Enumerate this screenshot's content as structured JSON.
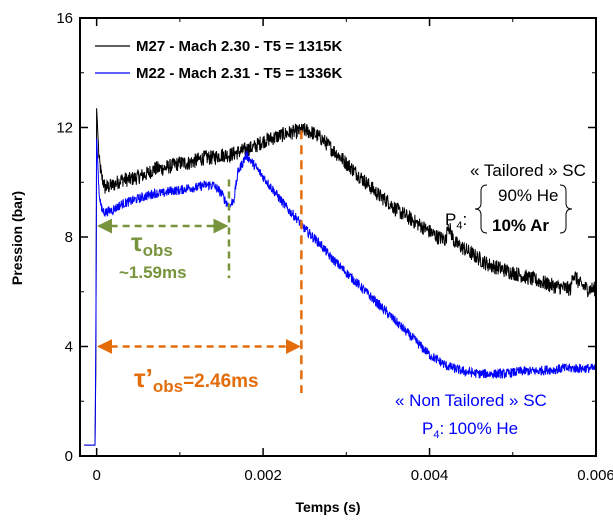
{
  "chart_data": {
    "type": "line",
    "xlabel": "Temps (s)",
    "ylabel": "Pression (bar)",
    "xlim": [
      -0.0002,
      0.006
    ],
    "ylim": [
      0,
      16
    ],
    "xticks": [
      0,
      0.002,
      0.004,
      0.006
    ],
    "xtick_labels": [
      "0",
      "0.002",
      "0.004",
      "0.006"
    ],
    "yticks": [
      0,
      4,
      8,
      12,
      16
    ],
    "ytick_labels": [
      "0",
      "4",
      "8",
      "12",
      "16"
    ],
    "grid": false,
    "legend_position": "top-left",
    "series": [
      {
        "name": "M27 - Mach 2.30 - T5 = 1315K",
        "color": "#000000",
        "x": [
          -0.00015,
          -2e-05,
          -1e-05,
          0.0,
          3e-05,
          6e-05,
          0.0001,
          0.0002,
          0.0003,
          0.0004,
          0.0005,
          0.0006,
          0.0007,
          0.0008,
          0.0009,
          0.001,
          0.0011,
          0.0012,
          0.0013,
          0.0014,
          0.0015,
          0.0016,
          0.0017,
          0.0018,
          0.0019,
          0.002,
          0.0021,
          0.0022,
          0.0023,
          0.0024,
          0.0025,
          0.0026,
          0.0027,
          0.0028,
          0.0029,
          0.003,
          0.0031,
          0.0032,
          0.0033,
          0.0034,
          0.0035,
          0.0036,
          0.0037,
          0.0038,
          0.0039,
          0.004,
          0.0041,
          0.0042,
          0.00422,
          0.0043,
          0.0044,
          0.0045,
          0.0046,
          0.0047,
          0.0048,
          0.0049,
          0.005,
          0.0051,
          0.0052,
          0.0053,
          0.0054,
          0.0055,
          0.0056,
          0.0057,
          0.00572,
          0.0058,
          0.0059,
          0.006
        ],
        "values": [
          0.4,
          0.4,
          3.0,
          12.7,
          10.8,
          10.2,
          9.8,
          9.9,
          10.1,
          10.1,
          10.2,
          10.3,
          10.5,
          10.5,
          10.6,
          10.7,
          10.7,
          10.8,
          10.9,
          10.9,
          11.0,
          11.0,
          11.1,
          11.2,
          11.3,
          11.5,
          11.6,
          11.7,
          11.8,
          11.85,
          11.9,
          11.8,
          11.6,
          11.3,
          11.0,
          10.7,
          10.4,
          10.1,
          9.8,
          9.5,
          9.3,
          9.0,
          8.8,
          8.6,
          8.4,
          8.2,
          8.0,
          7.9,
          8.5,
          7.8,
          7.6,
          7.4,
          7.2,
          7.0,
          6.9,
          6.8,
          6.7,
          6.6,
          6.5,
          6.4,
          6.3,
          6.2,
          6.15,
          6.1,
          6.7,
          6.3,
          6.1,
          6.1
        ]
      },
      {
        "name": "M22 - Mach 2.31 - T5 = 1336K",
        "color": "#0000ff",
        "x": [
          -0.00015,
          -2e-05,
          -1e-05,
          0.0,
          3e-05,
          6e-05,
          0.0001,
          0.0002,
          0.0003,
          0.0004,
          0.0005,
          0.0006,
          0.0007,
          0.0008,
          0.0009,
          0.001,
          0.0011,
          0.0012,
          0.0013,
          0.0014,
          0.0015,
          0.00155,
          0.0016,
          0.00165,
          0.0017,
          0.0018,
          0.0019,
          0.002,
          0.0021,
          0.0022,
          0.0023,
          0.0024,
          0.0025,
          0.0026,
          0.0027,
          0.0028,
          0.0029,
          0.003,
          0.0031,
          0.0032,
          0.0033,
          0.0034,
          0.0035,
          0.0036,
          0.0037,
          0.0038,
          0.0039,
          0.004,
          0.0041,
          0.0042,
          0.0043,
          0.0044,
          0.0045,
          0.0046,
          0.0047,
          0.0048,
          0.0049,
          0.005,
          0.0051,
          0.0052,
          0.0053,
          0.0054,
          0.0055,
          0.0056,
          0.0057,
          0.0058,
          0.0059,
          0.006
        ],
        "values": [
          0.4,
          0.4,
          4.0,
          11.6,
          9.6,
          9.0,
          8.9,
          9.0,
          9.2,
          9.3,
          9.4,
          9.5,
          9.6,
          9.6,
          9.7,
          9.7,
          9.8,
          9.8,
          9.9,
          9.9,
          9.6,
          9.3,
          9.1,
          9.4,
          10.4,
          11.0,
          10.6,
          10.2,
          9.8,
          9.4,
          9.0,
          8.7,
          8.3,
          8.0,
          7.7,
          7.3,
          7.0,
          6.7,
          6.4,
          6.1,
          5.8,
          5.5,
          5.2,
          4.9,
          4.6,
          4.3,
          4.0,
          3.7,
          3.5,
          3.3,
          3.2,
          3.1,
          3.05,
          3.0,
          3.0,
          3.0,
          3.0,
          3.05,
          3.1,
          3.1,
          3.1,
          3.15,
          3.15,
          3.2,
          3.2,
          3.2,
          3.2,
          3.2
        ]
      }
    ],
    "annotations": {
      "tau_obs_symbol": "τ",
      "tau_obs_sub": "obs",
      "tau_obs_value": "~1.59ms",
      "tau_obs_x": 0.00159,
      "tau_obs_y": 8.4,
      "tau_obs_color": "#77933c",
      "tau_prime_symbol": "τ’",
      "tau_prime_sub": "obs",
      "tau_prime_value": "=2.46ms",
      "tau_prime_x": 0.00246,
      "tau_prime_y": 4.0,
      "tau_prime_color": "#e46c0a",
      "tailored_title": "« Tailored » SC",
      "tailored_p4": "P",
      "tailored_p4_sub": "4",
      "tailored_p4_colon": ":",
      "tailored_he": "90% He",
      "tailored_ar": "10% Ar",
      "non_tailored_title": "« Non Tailored » SC",
      "non_tailored_p4": "P",
      "non_tailored_p4_sub": "4",
      "non_tailored_p4_colon": ":",
      "non_tailored_he": "100% He",
      "non_tailored_color": "#0000ff"
    }
  }
}
